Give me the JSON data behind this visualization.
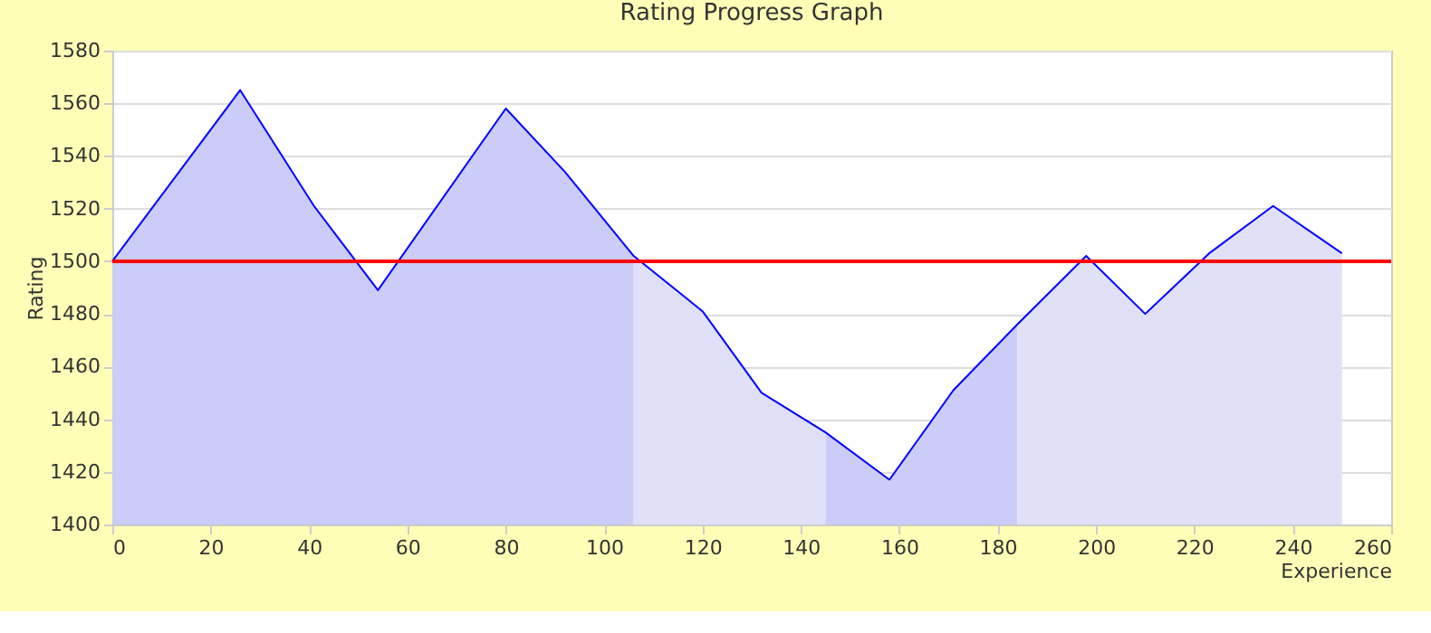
{
  "chart_data": {
    "type": "area",
    "title": "Rating Progress Graph",
    "xlabel": "Experience",
    "ylabel": "Rating",
    "x": [
      0,
      26,
      41,
      54,
      80,
      92,
      106,
      120,
      132,
      145,
      158,
      171,
      184,
      198,
      210,
      223,
      236,
      250
    ],
    "series": [
      {
        "color": "#ccccf8",
        "values": [
          1500,
          1565,
          1521,
          1489,
          1558,
          1534,
          1502,
          null,
          null,
          1435,
          1417,
          1451,
          1476,
          null,
          null,
          null,
          null,
          null
        ]
      },
      {
        "color": "#e0e0f8",
        "values": [
          null,
          null,
          null,
          null,
          null,
          null,
          1502,
          1481,
          1450,
          1435,
          null,
          null,
          1476,
          1502,
          1480,
          1503,
          1521,
          1503
        ]
      },
      {
        "type": "line",
        "color": "#0000ff",
        "values": [
          1500,
          1565,
          1521,
          1489,
          1558,
          1534,
          1502,
          1481,
          1450,
          1435,
          1417,
          1451,
          1476,
          1502,
          1480,
          1503,
          1521,
          1503
        ]
      }
    ],
    "xlim": [
      0,
      260
    ],
    "xticks": [
      0,
      20,
      40,
      60,
      80,
      100,
      120,
      140,
      160,
      180,
      200,
      220,
      240,
      260
    ],
    "ylim": [
      1400,
      1580
    ],
    "yticks": [
      1400,
      1420,
      1440,
      1460,
      1480,
      1500,
      1520,
      1540,
      1560,
      1580
    ],
    "ref_lines": [
      {
        "axis": "y",
        "value": 1500,
        "color": "#ff0000"
      }
    ],
    "grid": "y",
    "marker": "none"
  }
}
